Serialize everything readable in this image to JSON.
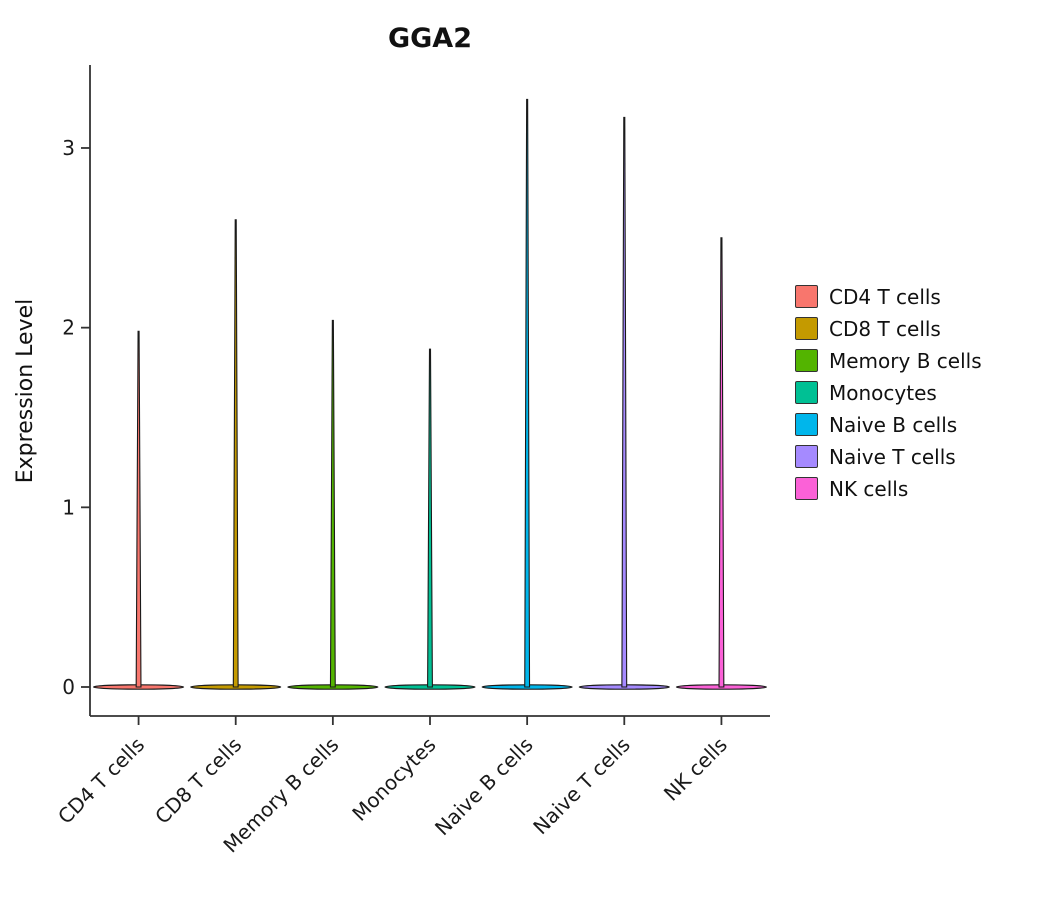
{
  "figure": {
    "title": "GGA2",
    "ylabel": "Expression Level"
  },
  "chart_data": {
    "type": "violin",
    "title": "GGA2",
    "xlabel": "",
    "ylabel": "Expression Level",
    "ylim": [
      0,
      3.35
    ],
    "yticks": [
      0,
      1,
      2,
      3
    ],
    "grid": false,
    "legend_position": "right",
    "axis_color": "#333333",
    "violin_outline_color": "#1a1a1a",
    "categories": [
      "CD4 T cells",
      "CD8 T cells",
      "Memory B cells",
      "Monocytes",
      "Naive B cells",
      "Naive T cells",
      "NK cells"
    ],
    "series": [
      {
        "name": "CD4 T cells",
        "color": "#F8766D",
        "baseline": 0,
        "max_expression": 1.98,
        "shape": "dense mass at 0 with thin tail to max"
      },
      {
        "name": "CD8 T cells",
        "color": "#C49A00",
        "baseline": 0,
        "max_expression": 2.6,
        "shape": "dense mass at 0 with thin tail to max"
      },
      {
        "name": "Memory B cells",
        "color": "#53B400",
        "baseline": 0,
        "max_expression": 2.04,
        "shape": "dense mass at 0 with thin tail to max"
      },
      {
        "name": "Monocytes",
        "color": "#00C094",
        "baseline": 0,
        "max_expression": 1.88,
        "shape": "dense mass at 0 with thin tail to max"
      },
      {
        "name": "Naive B cells",
        "color": "#00B6EB",
        "baseline": 0,
        "max_expression": 3.27,
        "shape": "dense mass at 0 with thin tail to max"
      },
      {
        "name": "Naive T cells",
        "color": "#A58AFF",
        "baseline": 0,
        "max_expression": 3.17,
        "shape": "dense mass at 0 with thin tail to max"
      },
      {
        "name": "NK cells",
        "color": "#FB61D7",
        "baseline": 0,
        "max_expression": 2.5,
        "shape": "dense mass at 0 with thin tail to max"
      }
    ],
    "legend": [
      {
        "label": "CD4 T cells",
        "color": "#F8766D"
      },
      {
        "label": "CD8 T cells",
        "color": "#C49A00"
      },
      {
        "label": "Memory B cells",
        "color": "#53B400"
      },
      {
        "label": "Monocytes",
        "color": "#00C094"
      },
      {
        "label": "Naive B cells",
        "color": "#00B6EB"
      },
      {
        "label": "Naive T cells",
        "color": "#A58AFF"
      },
      {
        "label": "NK cells",
        "color": "#FB61D7"
      }
    ]
  }
}
